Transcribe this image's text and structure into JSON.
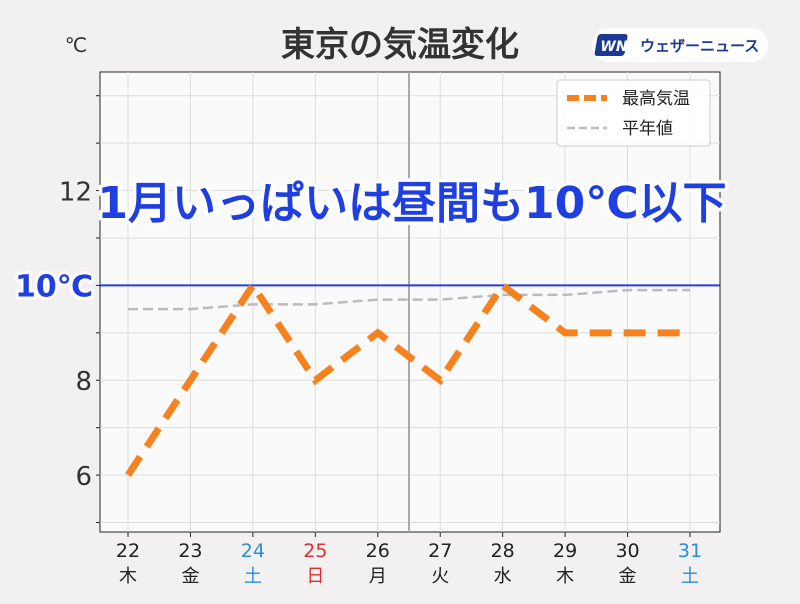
{
  "chart_data": {
    "type": "line",
    "title": "東京の気温変化",
    "unit": "℃",
    "headline": "1月いっぱいは昼間も10℃以下",
    "reference_line": {
      "value": 10,
      "label": "10℃",
      "color": "#1f3fe0"
    },
    "x": [
      22,
      23,
      24,
      25,
      26,
      27,
      28,
      29,
      30,
      31
    ],
    "x_tick_labels": [
      "22",
      "23",
      "24",
      "25",
      "26",
      "27",
      "28",
      "29",
      "30",
      "31"
    ],
    "weekday_labels": [
      "木",
      "金",
      "土",
      "日",
      "月",
      "火",
      "水",
      "木",
      "金",
      "土"
    ],
    "day_label_colors": [
      "#222222",
      "#222222",
      "#2b8fd6",
      "#d9302c",
      "#222222",
      "#222222",
      "#222222",
      "#222222",
      "#222222",
      "#2b8fd6"
    ],
    "y_ticks": [
      6,
      8,
      12
    ],
    "ylim": [
      4.8,
      14.5
    ],
    "grid": true,
    "legend_position": "top-right",
    "series": [
      {
        "name": "最高気温",
        "style": "thick-dashed",
        "color": "#f5821f",
        "values": [
          6,
          8,
          10,
          8,
          9,
          8,
          10,
          9,
          9,
          9
        ]
      },
      {
        "name": "平年値",
        "style": "thin-dashed",
        "color": "#bbbbbb",
        "values": [
          9.5,
          9.5,
          9.6,
          9.6,
          9.7,
          9.7,
          9.8,
          9.8,
          9.9,
          9.9
        ]
      }
    ],
    "month_divider_after": 26
  },
  "logo": {
    "text": "ウェザーニュース",
    "mark": "WN",
    "color": "#1d3a93"
  }
}
